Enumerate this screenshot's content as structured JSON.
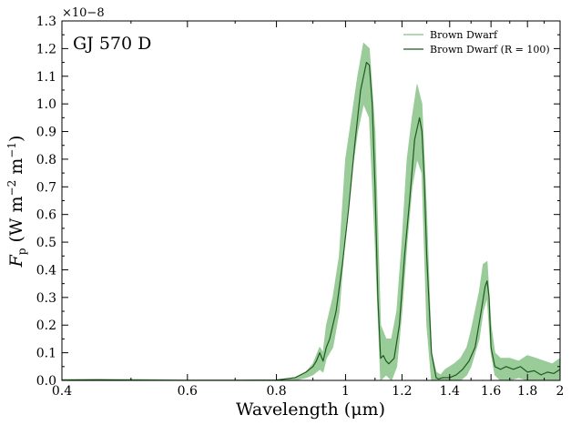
{
  "chart_data": {
    "type": "line",
    "annotation": "GJ 570 D",
    "xlabel": "Wavelength (μm)",
    "ylabel_parts": {
      "F": "F",
      "sub": "p",
      "rest": " (W m",
      "e1": "−2",
      "mid": " m",
      "e2": "−1",
      "close": ")"
    },
    "y_multiplier": "×10−8",
    "x_scale": "log",
    "xlim": [
      0.4,
      2.0
    ],
    "ylim": [
      0.0,
      1.3
    ],
    "x_ticks": [
      {
        "value": 0.4,
        "label": "0.4"
      },
      {
        "value": 0.6,
        "label": "0.6"
      },
      {
        "value": 0.8,
        "label": "0.8"
      },
      {
        "value": 1.0,
        "label": "1"
      },
      {
        "value": 1.2,
        "label": "1.2"
      },
      {
        "value": 1.4,
        "label": "1.4"
      },
      {
        "value": 1.6,
        "label": "1.6"
      },
      {
        "value": 1.8,
        "label": "1.8"
      },
      {
        "value": 2.0,
        "label": "2"
      }
    ],
    "y_ticks": [
      {
        "value": 0.0,
        "label": "0.0"
      },
      {
        "value": 0.1,
        "label": "0.1"
      },
      {
        "value": 0.2,
        "label": "0.2"
      },
      {
        "value": 0.3,
        "label": "0.3"
      },
      {
        "value": 0.4,
        "label": "0.4"
      },
      {
        "value": 0.5,
        "label": "0.5"
      },
      {
        "value": 0.6,
        "label": "0.6"
      },
      {
        "value": 0.7,
        "label": "0.7"
      },
      {
        "value": 0.8,
        "label": "0.8"
      },
      {
        "value": 0.9,
        "label": "0.9"
      },
      {
        "value": 1.0,
        "label": "1.0"
      },
      {
        "value": 1.1,
        "label": "1.1"
      },
      {
        "value": 1.2,
        "label": "1.2"
      },
      {
        "value": 1.3,
        "label": "1.3"
      }
    ],
    "legend_position": "top-right",
    "grid": false,
    "series": [
      {
        "name": "Brown Dwarf",
        "style": "band",
        "color": "#99cc99",
        "x": [
          0.4,
          0.5,
          0.6,
          0.7,
          0.8,
          0.85,
          0.88,
          0.9,
          0.92,
          0.93,
          0.94,
          0.96,
          0.98,
          1.0,
          1.02,
          1.04,
          1.06,
          1.08,
          1.1,
          1.12,
          1.14,
          1.16,
          1.18,
          1.2,
          1.22,
          1.24,
          1.26,
          1.28,
          1.3,
          1.32,
          1.34,
          1.36,
          1.38,
          1.4,
          1.42,
          1.45,
          1.48,
          1.5,
          1.52,
          1.54,
          1.56,
          1.58,
          1.6,
          1.62,
          1.65,
          1.7,
          1.75,
          1.8,
          1.85,
          1.9,
          1.95,
          2.0
        ],
        "low": [
          0.0,
          0.0,
          0.0,
          0.0,
          0.0,
          0.0,
          0.01,
          0.02,
          0.04,
          0.03,
          0.08,
          0.12,
          0.25,
          0.55,
          0.75,
          0.9,
          1.0,
          0.95,
          0.5,
          0.0,
          0.02,
          0.0,
          0.05,
          0.25,
          0.5,
          0.7,
          0.8,
          0.75,
          0.2,
          0.0,
          0.0,
          0.0,
          0.0,
          0.0,
          0.0,
          0.0,
          0.02,
          0.05,
          0.1,
          0.15,
          0.25,
          0.3,
          0.1,
          0.02,
          0.0,
          0.0,
          0.01,
          0.0,
          0.0,
          0.0,
          0.0,
          0.0
        ],
        "high": [
          0.004,
          0.004,
          0.002,
          0.002,
          0.003,
          0.01,
          0.03,
          0.06,
          0.12,
          0.1,
          0.2,
          0.3,
          0.45,
          0.8,
          0.95,
          1.1,
          1.22,
          1.2,
          0.9,
          0.2,
          0.15,
          0.15,
          0.25,
          0.5,
          0.8,
          0.95,
          1.07,
          1.0,
          0.6,
          0.1,
          0.03,
          0.02,
          0.04,
          0.05,
          0.06,
          0.08,
          0.12,
          0.18,
          0.25,
          0.32,
          0.42,
          0.43,
          0.2,
          0.1,
          0.08,
          0.08,
          0.07,
          0.09,
          0.08,
          0.07,
          0.06,
          0.08
        ]
      },
      {
        "name": "Brown Dwarf (R = 100)",
        "style": "line",
        "color": "#1e5a1e",
        "x": [
          0.4,
          0.45,
          0.5,
          0.6,
          0.7,
          0.8,
          0.85,
          0.88,
          0.9,
          0.91,
          0.92,
          0.93,
          0.94,
          0.95,
          0.97,
          0.99,
          1.01,
          1.03,
          1.05,
          1.07,
          1.08,
          1.09,
          1.1,
          1.11,
          1.12,
          1.13,
          1.14,
          1.15,
          1.17,
          1.19,
          1.21,
          1.23,
          1.25,
          1.27,
          1.28,
          1.29,
          1.3,
          1.32,
          1.34,
          1.35,
          1.37,
          1.4,
          1.43,
          1.46,
          1.49,
          1.52,
          1.55,
          1.57,
          1.58,
          1.59,
          1.6,
          1.62,
          1.65,
          1.68,
          1.72,
          1.76,
          1.8,
          1.84,
          1.88,
          1.92,
          1.96,
          2.0
        ],
        "y": [
          0.001,
          0.002,
          0.001,
          0.0,
          0.0,
          0.001,
          0.01,
          0.03,
          0.05,
          0.07,
          0.1,
          0.07,
          0.12,
          0.15,
          0.25,
          0.42,
          0.62,
          0.85,
          1.05,
          1.15,
          1.14,
          1.0,
          0.7,
          0.3,
          0.08,
          0.09,
          0.07,
          0.06,
          0.08,
          0.2,
          0.45,
          0.65,
          0.87,
          0.95,
          0.9,
          0.72,
          0.45,
          0.1,
          0.01,
          0.005,
          0.01,
          0.01,
          0.02,
          0.04,
          0.07,
          0.12,
          0.25,
          0.34,
          0.36,
          0.3,
          0.12,
          0.05,
          0.04,
          0.05,
          0.04,
          0.05,
          0.03,
          0.035,
          0.02,
          0.03,
          0.025,
          0.04
        ]
      }
    ]
  }
}
